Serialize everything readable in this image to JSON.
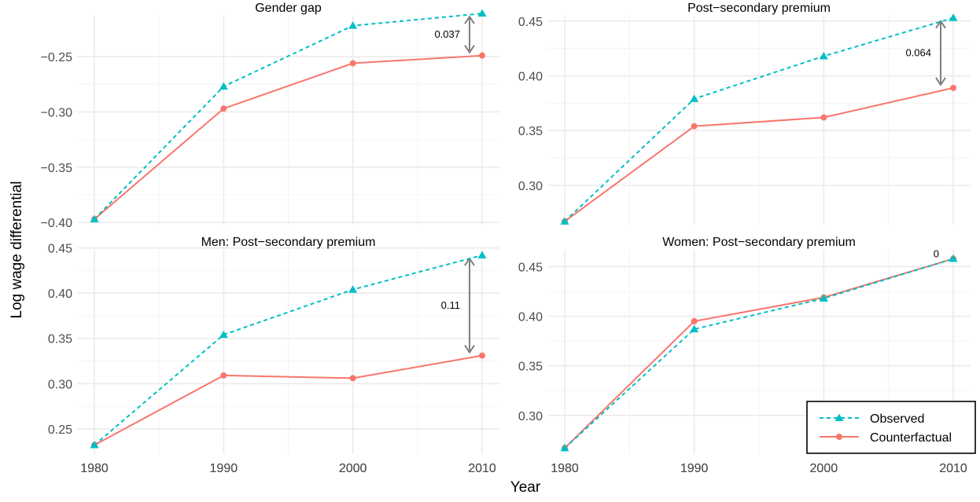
{
  "figure": {
    "ylabel": "Log wage differential",
    "xlabel": "Year"
  },
  "colors": {
    "observed": "#00BFC4",
    "counterfactual": "#F8766D",
    "grid_major": "#EBEBEB",
    "arrow": "#7F7F7F",
    "text": "#4D4D4D"
  },
  "legend": {
    "items": [
      {
        "label": "Observed",
        "series": "observed",
        "marker": "triangle",
        "dash": "dashed"
      },
      {
        "label": "Counterfactual",
        "series": "counterfactual",
        "marker": "circle",
        "dash": "solid"
      }
    ],
    "placement": "bottom-right"
  },
  "chart_data": [
    {
      "type": "line",
      "title": "Gender gap",
      "x": [
        1980,
        1990,
        2000,
        2010
      ],
      "xticks": [
        "1980",
        "1990",
        "2000",
        "2010"
      ],
      "yticks": [
        -0.4,
        -0.35,
        -0.3,
        -0.25
      ],
      "yticklabels": [
        "−0.40",
        "−0.35",
        "−0.30",
        "−0.25"
      ],
      "ylim": [
        -0.402,
        -0.213
      ],
      "series": [
        {
          "name": "Observed",
          "key": "observed",
          "values": [
            -0.397,
            -0.277,
            -0.222,
            -0.211
          ]
        },
        {
          "name": "Counterfactual",
          "key": "counterfactual",
          "values": [
            -0.397,
            -0.297,
            -0.256,
            -0.249
          ]
        }
      ],
      "annotation": {
        "label": "0.037",
        "x": 2010
      }
    },
    {
      "type": "line",
      "title": "Post−secondary premium",
      "x": [
        1980,
        1990,
        2000,
        2010
      ],
      "xticks": [
        "1980",
        "1990",
        "2000",
        "2010"
      ],
      "yticks": [
        0.3,
        0.35,
        0.4,
        0.45
      ],
      "yticklabels": [
        "0.30",
        "0.35",
        "0.40",
        "0.45"
      ],
      "ylim": [
        0.264,
        0.455
      ],
      "series": [
        {
          "name": "Observed",
          "key": "observed",
          "values": [
            0.267,
            0.379,
            0.418,
            0.453
          ]
        },
        {
          "name": "Counterfactual",
          "key": "counterfactual",
          "values": [
            0.267,
            0.354,
            0.362,
            0.389
          ]
        }
      ],
      "annotation": {
        "label": "0.064",
        "x": 2010
      }
    },
    {
      "type": "line",
      "title": "Men: Post−secondary premium",
      "x": [
        1980,
        1990,
        2000,
        2010
      ],
      "xticks": [
        "1980",
        "1990",
        "2000",
        "2010"
      ],
      "yticks": [
        0.25,
        0.3,
        0.35,
        0.4,
        0.45
      ],
      "yticklabels": [
        "0.25",
        "0.30",
        "0.35",
        "0.40",
        "0.45"
      ],
      "ylim": [
        0.222,
        0.448
      ],
      "series": [
        {
          "name": "Observed",
          "key": "observed",
          "values": [
            0.232,
            0.354,
            0.404,
            0.442
          ]
        },
        {
          "name": "Counterfactual",
          "key": "counterfactual",
          "values": [
            0.232,
            0.309,
            0.306,
            0.331
          ]
        }
      ],
      "annotation": {
        "label": "0.11",
        "x": 2010
      }
    },
    {
      "type": "line",
      "title": "Women: Post−secondary premium",
      "x": [
        1980,
        1990,
        2000,
        2010
      ],
      "xticks": [
        "1980",
        "1990",
        "2000",
        "2010"
      ],
      "yticks": [
        0.3,
        0.35,
        0.4,
        0.45
      ],
      "yticklabels": [
        "0.30",
        "0.35",
        "0.40",
        "0.45"
      ],
      "ylim": [
        0.261,
        0.467
      ],
      "series": [
        {
          "name": "Observed",
          "key": "observed",
          "values": [
            0.267,
            0.387,
            0.418,
            0.458
          ]
        },
        {
          "name": "Counterfactual",
          "key": "counterfactual",
          "values": [
            0.267,
            0.395,
            0.419,
            0.458
          ]
        }
      ],
      "annotation": {
        "label": "0",
        "x": 2010
      }
    }
  ]
}
